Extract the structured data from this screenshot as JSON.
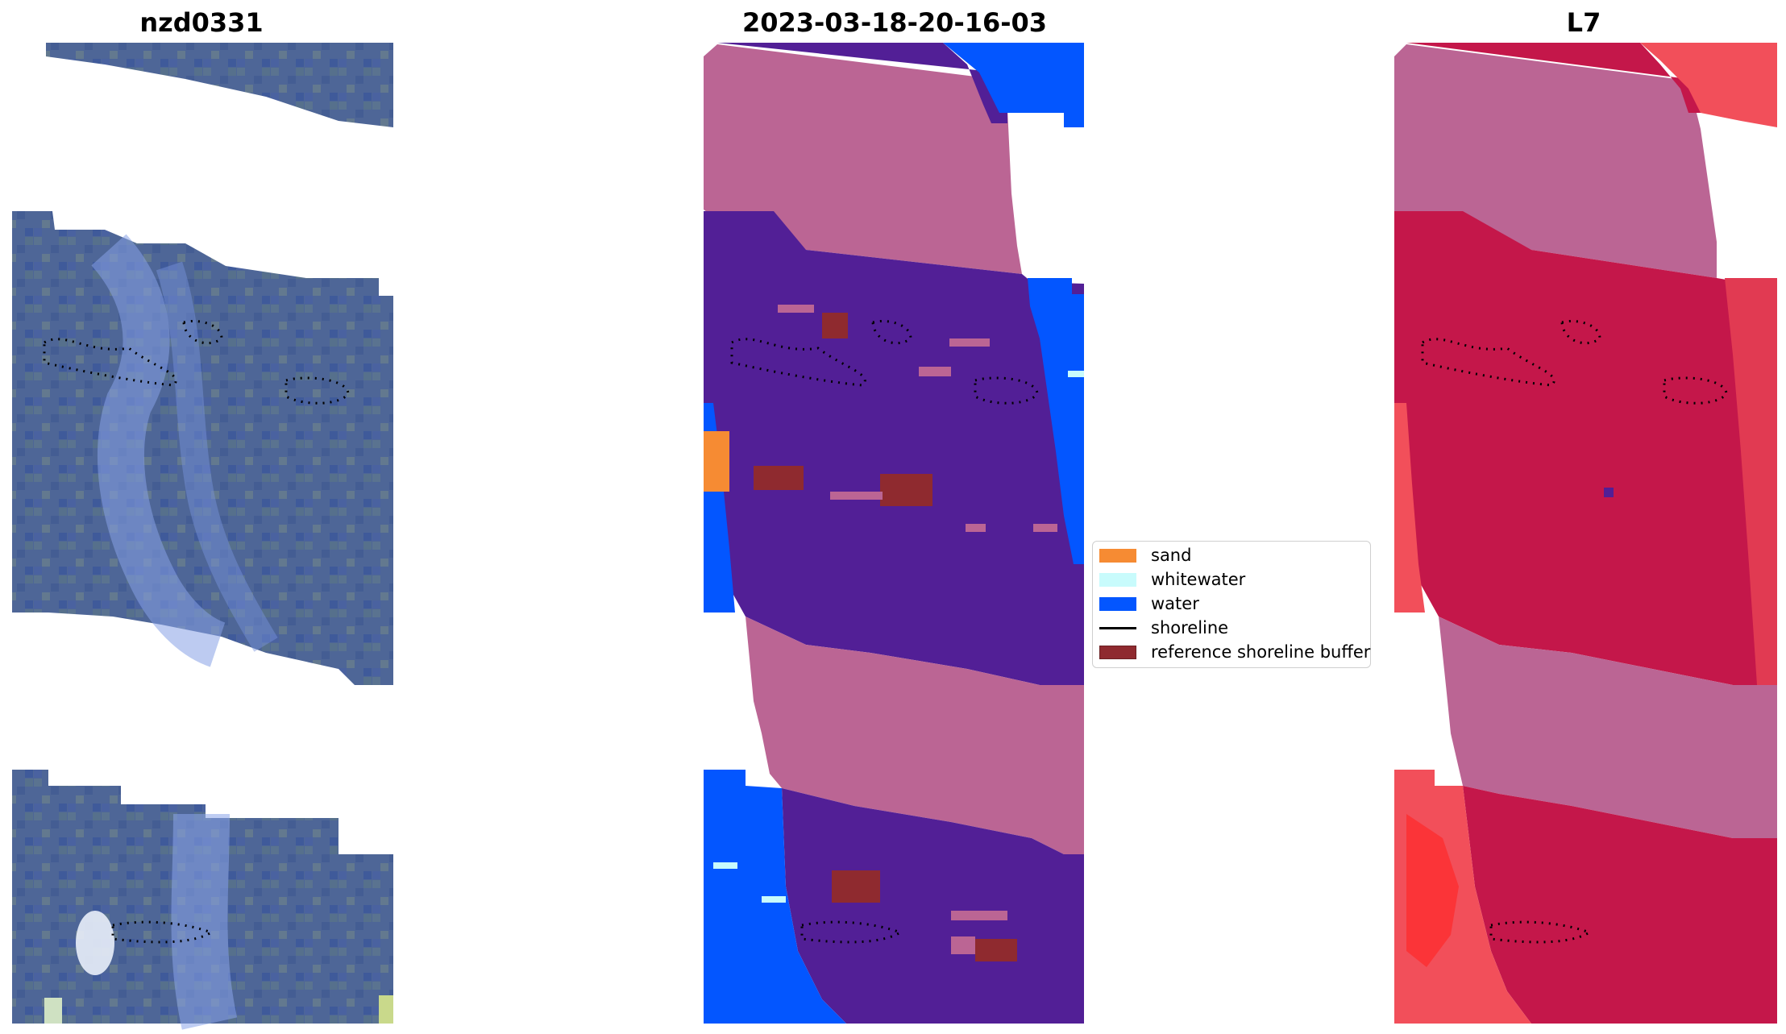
{
  "panels": [
    {
      "title": "nzd0331"
    },
    {
      "title": "2023-03-18-20-16-03"
    },
    {
      "title": "L7"
    }
  ],
  "legend": {
    "items": [
      {
        "label": "sand",
        "color": "#f68b33",
        "kind": "patch"
      },
      {
        "label": "whitewater",
        "color": "#c8fbfc",
        "kind": "patch"
      },
      {
        "label": "water",
        "color": "#0356ff",
        "kind": "patch"
      },
      {
        "label": "shoreline",
        "color": "#000000",
        "kind": "line"
      },
      {
        "label": "reference shoreline buffer",
        "color": "#8f2a2f",
        "kind": "patch"
      }
    ]
  },
  "colors": {
    "rgb_base": "#4f6796",
    "rgb_bright": "#7c98e2",
    "class_land": "#bb6594",
    "class_other": "#521f96",
    "ndwi_high": "#c4174a",
    "ndwi_land": "#bb6594",
    "ndwi_low": "#f24f5a"
  }
}
